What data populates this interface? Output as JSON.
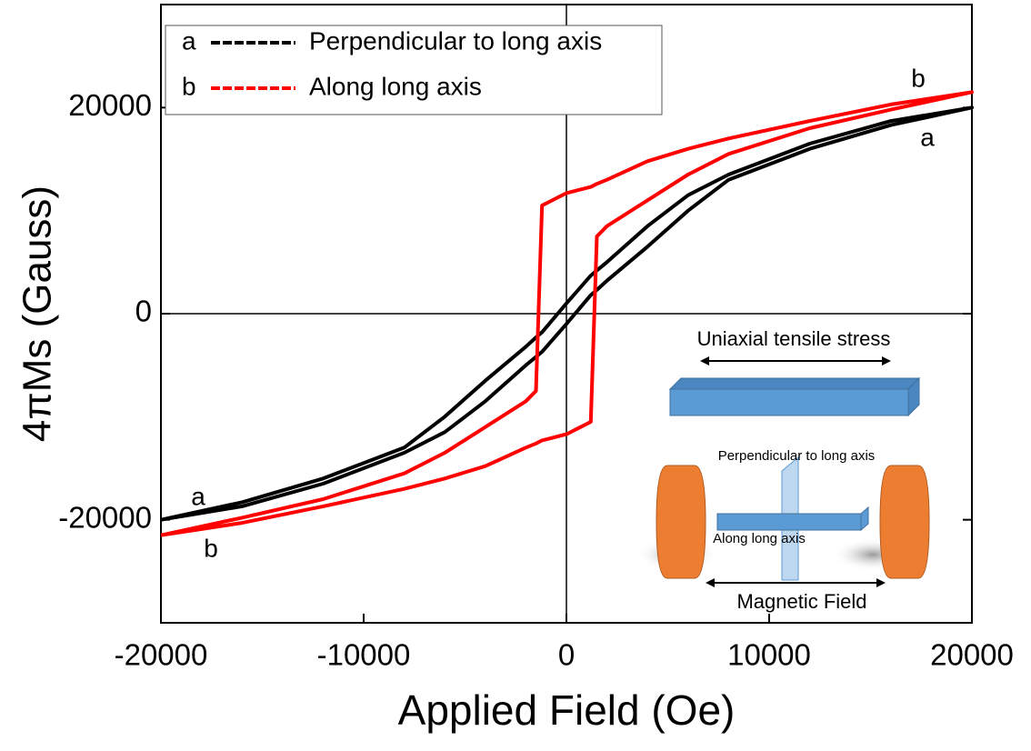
{
  "chart_data": {
    "type": "line",
    "x_label": "Applied Field (Oe)",
    "y_label": "4πMs (Gauss)",
    "xlim": [
      -20000,
      20000
    ],
    "ylim": [
      -30000,
      30000
    ],
    "xticks": [
      -20000,
      -10000,
      0,
      10000,
      20000
    ],
    "yticks": [
      -20000,
      0,
      20000
    ],
    "legend": "upper left",
    "x": [
      -20000,
      -16000,
      -12000,
      -8000,
      -6000,
      -4000,
      -2000,
      -1500,
      -1200,
      0,
      1200,
      1500,
      2000,
      4000,
      6000,
      8000,
      12000,
      16000,
      20000,
      16000,
      12000,
      8000,
      6000,
      4000,
      2000,
      1500,
      1200,
      0,
      -1200,
      -1500,
      -2000,
      -4000,
      -6000,
      -8000,
      -12000,
      -16000,
      -20000
    ],
    "series": [
      {
        "name": "Perpendicular to long axis",
        "label": "a",
        "color": "#000000",
        "values": [
          -20000,
          -18700,
          -16500,
          -13500,
          -11500,
          -8500,
          -5000,
          -4200,
          -3700,
          -1000,
          1800,
          2300,
          3200,
          6500,
          10000,
          13000,
          16000,
          18300,
          20000,
          18700,
          16500,
          13500,
          11500,
          8500,
          5000,
          4200,
          3700,
          1000,
          -1800,
          -2300,
          -3200,
          -6500,
          -10000,
          -13000,
          -16000,
          -18300,
          -20000
        ]
      },
      {
        "name": "Along long axis",
        "label": "b",
        "color": "#ff0000",
        "values": [
          -21500,
          -20300,
          -18700,
          -17000,
          -16000,
          -14800,
          -13000,
          -12600,
          -12300,
          -11700,
          -10500,
          7500,
          8500,
          11000,
          13500,
          15500,
          18000,
          19800,
          21500,
          20300,
          18700,
          17000,
          16000,
          14800,
          13000,
          12600,
          12300,
          11700,
          10500,
          -7500,
          -8500,
          -11000,
          -13500,
          -15500,
          -18000,
          -19800,
          -21500
        ]
      }
    ],
    "annotations": [
      "b",
      "a",
      "a",
      "b"
    ],
    "inset": {
      "stress": "Uniaxial tensile stress",
      "perpendicular": "Perpendicular to long axis",
      "along": "Along long axis",
      "field": "Magnetic Field"
    }
  }
}
